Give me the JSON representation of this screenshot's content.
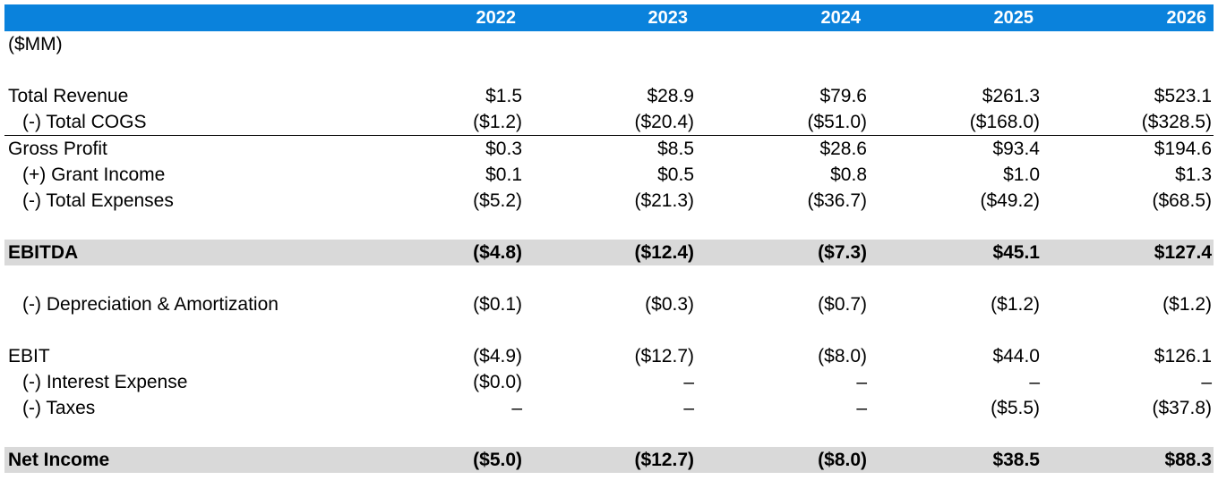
{
  "header": {
    "years": [
      "2022",
      "2023",
      "2024",
      "2025",
      "2026"
    ]
  },
  "units_label": "($MM)",
  "rows": {
    "total_revenue": {
      "label": "Total Revenue",
      "values": [
        "$1.5",
        "$28.9",
        "$79.6",
        "$261.3",
        "$523.1"
      ]
    },
    "total_cogs": {
      "label": "(-) Total COGS",
      "values": [
        "($1.2)",
        "($20.4)",
        "($51.0)",
        "($168.0)",
        "($328.5)"
      ]
    },
    "gross_profit": {
      "label": "Gross Profit",
      "values": [
        "$0.3",
        "$8.5",
        "$28.6",
        "$93.4",
        "$194.6"
      ]
    },
    "grant_income": {
      "label": "(+) Grant Income",
      "values": [
        "$0.1",
        "$0.5",
        "$0.8",
        "$1.0",
        "$1.3"
      ]
    },
    "total_expenses": {
      "label": "(-) Total Expenses",
      "values": [
        "($5.2)",
        "($21.3)",
        "($36.7)",
        "($49.2)",
        "($68.5)"
      ]
    },
    "ebitda": {
      "label": "EBITDA",
      "values": [
        "($4.8)",
        "($12.4)",
        "($7.3)",
        "$45.1",
        "$127.4"
      ]
    },
    "depreciation": {
      "label": "(-) Depreciation & Amortization",
      "values": [
        "($0.1)",
        "($0.3)",
        "($0.7)",
        "($1.2)",
        "($1.2)"
      ]
    },
    "ebit": {
      "label": "EBIT",
      "values": [
        "($4.9)",
        "($12.7)",
        "($8.0)",
        "$44.0",
        "$126.1"
      ]
    },
    "interest_expense": {
      "label": "(-) Interest Expense",
      "values": [
        "($0.0)",
        "–",
        "–",
        "–",
        "–"
      ]
    },
    "taxes": {
      "label": "(-) Taxes",
      "values": [
        "–",
        "–",
        "–",
        "($5.5)",
        "($37.8)"
      ]
    },
    "net_income": {
      "label": "Net Income",
      "values": [
        "($5.0)",
        "($12.7)",
        "($8.0)",
        "$38.5",
        "$88.3"
      ]
    }
  },
  "colors": {
    "header_bg": "#0a82dc",
    "header_text": "#ffffff",
    "highlight_row_bg": "#d9d9d9"
  }
}
